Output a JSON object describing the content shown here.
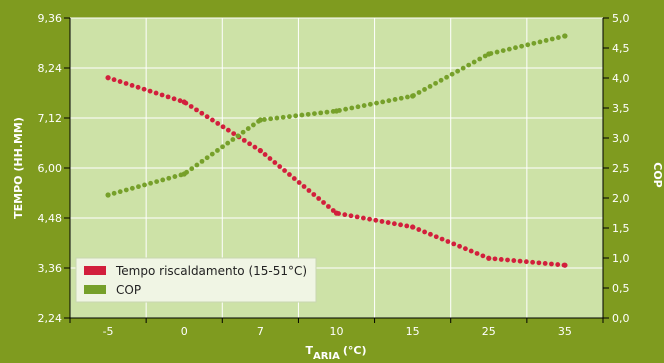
{
  "chart_data": {
    "type": "scatter",
    "title": "",
    "xlabel": {
      "main": "T",
      "sub": "ARIA",
      "unit": "(°C)"
    },
    "ylabel_left": "TEMPO (HH.MM)",
    "ylabel_right": "COP",
    "x_categories": [
      "-5",
      "0",
      "7",
      "10",
      "15",
      "25",
      "35"
    ],
    "y_left_ticks": [
      "2,24",
      "3,36",
      "4,48",
      "6,00",
      "7,12",
      "8,24",
      "9,36"
    ],
    "y_right_ticks": [
      "0,0",
      "0,5",
      "1,0",
      "1,5",
      "2,0",
      "2,5",
      "3,0",
      "3,5",
      "4,0",
      "4,5",
      "5,0"
    ],
    "y_right_range": [
      0,
      5
    ],
    "grid": true,
    "legend_position": "bottom-left",
    "series": [
      {
        "name": "Tempo riscaldamento (15-51°C)",
        "axis": "left",
        "color": "#d21f3c",
        "points": [
          [
            -5,
            8.1
          ],
          [
            0,
            7.35
          ],
          [
            7,
            5.85
          ],
          [
            10,
            4.55
          ],
          [
            15,
            3.95
          ],
          [
            25,
            3.5
          ],
          [
            35,
            3.4
          ]
        ]
      },
      {
        "name": "COP",
        "axis": "right",
        "color": "#76a02a",
        "points": [
          [
            -5,
            2.05
          ],
          [
            0,
            2.4
          ],
          [
            7,
            3.3
          ],
          [
            10,
            3.45
          ],
          [
            15,
            3.7
          ],
          [
            25,
            4.4
          ],
          [
            35,
            4.7
          ]
        ]
      }
    ]
  },
  "colors": {
    "background": "#7f9b1f",
    "plot_area": "#cde2a7",
    "grid": "#ffffff",
    "legend_background": "#f0f5e4"
  }
}
